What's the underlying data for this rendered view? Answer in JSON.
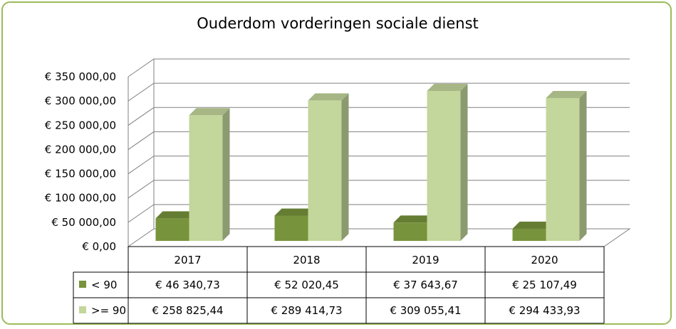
{
  "chart_data": {
    "type": "bar",
    "title": "Ouderdom vorderingen sociale dienst",
    "categories": [
      "2017",
      "2018",
      "2019",
      "2020"
    ],
    "series": [
      {
        "name": "< 90",
        "values": [
          46340.73,
          52020.45,
          37643.67,
          25107.49
        ],
        "labels": [
          "€ 46 340,73",
          "€ 52 020,45",
          "€ 37 643,67",
          "€ 25 107,49"
        ],
        "color": "#77933c"
      },
      {
        "name": ">= 90",
        "values": [
          258825.44,
          289414.73,
          309055.41,
          294433.93
        ],
        "labels": [
          "€ 258 825,44",
          "€ 289 414,73",
          "€ 309 055,41",
          "€ 294 433,93"
        ],
        "color": "#c3d69b"
      }
    ],
    "yticks": [
      "€  0,00",
      "€ 50 000,00",
      "€ 100 000,00",
      "€ 150 000,00",
      "€ 200 000,00",
      "€ 250 000,00",
      "€ 300 000,00",
      "€ 350 000,00"
    ],
    "ylim": [
      0,
      350000
    ],
    "grid": true,
    "legend": "data-table"
  }
}
